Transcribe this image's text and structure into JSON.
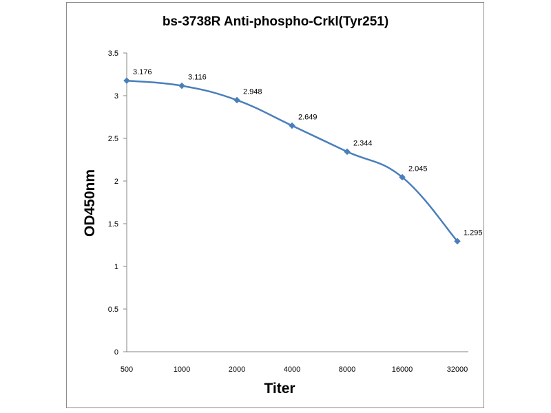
{
  "chart_data": {
    "type": "line",
    "title": "bs-3738R Anti-phospho-Crkl(Tyr251)",
    "xlabel": "Titer",
    "ylabel": "OD450nm",
    "categories": [
      "500",
      "1000",
      "2000",
      "4000",
      "8000",
      "16000",
      "32000"
    ],
    "series": [
      {
        "name": "OD450nm",
        "values": [
          3.176,
          3.116,
          2.948,
          2.649,
          2.344,
          2.045,
          1.295
        ],
        "labels": [
          "3.176",
          "3.116",
          "2.948",
          "2.649",
          "2.344",
          "2.045",
          "1.295"
        ]
      }
    ],
    "ylim": [
      0,
      3.5
    ],
    "yticks": [
      "0",
      "0.5",
      "1",
      "1.5",
      "2",
      "2.5",
      "3",
      "3.5"
    ],
    "ytick_values": [
      0,
      0.5,
      1,
      1.5,
      2,
      2.5,
      3,
      3.5
    ],
    "grid": false,
    "legend": "none",
    "line_color": "#4a7ebb",
    "marker": "diamond"
  }
}
